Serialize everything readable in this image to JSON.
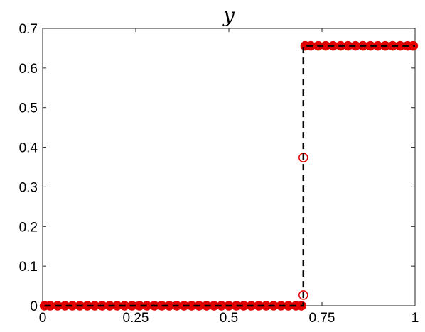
{
  "chart_data": {
    "type": "line",
    "title": "y",
    "xlabel": "",
    "ylabel": "",
    "xlim": [
      0,
      1
    ],
    "ylim": [
      0,
      0.7
    ],
    "xticks": [
      0,
      0.25,
      0.5,
      0.75,
      1
    ],
    "xtick_labels": [
      "0",
      "0.25",
      "0.5",
      "0.75",
      "1"
    ],
    "yticks": [
      0,
      0.1,
      0.2,
      0.3,
      0.4,
      0.5,
      0.6,
      0.7
    ],
    "ytick_labels": [
      "0",
      "0.1",
      "0.2",
      "0.3",
      "0.4",
      "0.5",
      "0.6",
      "0.7"
    ],
    "grid": false,
    "legend": "none",
    "series": [
      {
        "style": "dashed-line",
        "color": "#000000",
        "x": [
          0.005,
          0.7,
          0.7,
          1.0
        ],
        "y": [
          0.0,
          0.0,
          0.656,
          0.656
        ]
      },
      {
        "style": "markers",
        "color": "#e00000",
        "x": [
          0.005,
          0.02,
          0.04,
          0.06,
          0.08,
          0.1,
          0.12,
          0.14,
          0.16,
          0.18,
          0.2,
          0.22,
          0.24,
          0.26,
          0.28,
          0.3,
          0.32,
          0.34,
          0.36,
          0.38,
          0.4,
          0.42,
          0.44,
          0.46,
          0.48,
          0.5,
          0.52,
          0.54,
          0.56,
          0.58,
          0.6,
          0.62,
          0.64,
          0.66,
          0.68,
          0.695,
          0.7,
          0.7,
          0.705,
          0.72,
          0.74,
          0.76,
          0.78,
          0.8,
          0.82,
          0.84,
          0.86,
          0.88,
          0.9,
          0.92,
          0.94,
          0.96,
          0.98,
          0.995
        ],
        "y": [
          0,
          0,
          0,
          0,
          0,
          0,
          0,
          0,
          0,
          0,
          0,
          0,
          0,
          0,
          0,
          0,
          0,
          0,
          0,
          0,
          0,
          0,
          0,
          0,
          0,
          0,
          0,
          0,
          0,
          0,
          0,
          0,
          0,
          0,
          0,
          0,
          0.027,
          0.374,
          0.656,
          0.656,
          0.656,
          0.656,
          0.656,
          0.656,
          0.656,
          0.656,
          0.656,
          0.656,
          0.656,
          0.656,
          0.656,
          0.656,
          0.656,
          0.656
        ]
      }
    ]
  }
}
